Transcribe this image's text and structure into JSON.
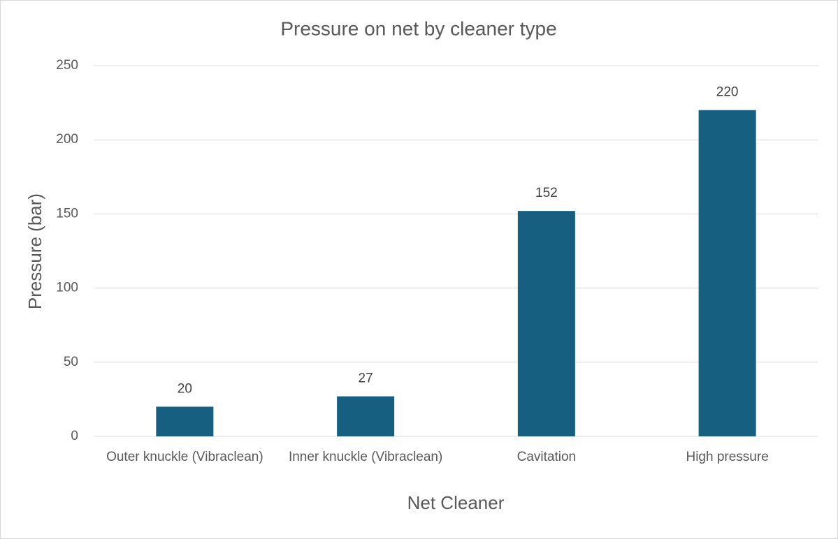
{
  "chart_data": {
    "type": "bar",
    "title": "Pressure on net by cleaner type",
    "x_label": "Net Cleaner",
    "y_label": "Pressure (bar)",
    "categories": [
      "Outer knuckle (Vibraclean)",
      "Inner knuckle (Vibraclean)",
      "Cavitation",
      "High pressure"
    ],
    "values": [
      20,
      27,
      152,
      220
    ],
    "color": "#175f80",
    "ylim": [
      0,
      250
    ],
    "yticks": [
      0,
      50,
      100,
      150,
      200,
      250
    ],
    "grid": true
  }
}
